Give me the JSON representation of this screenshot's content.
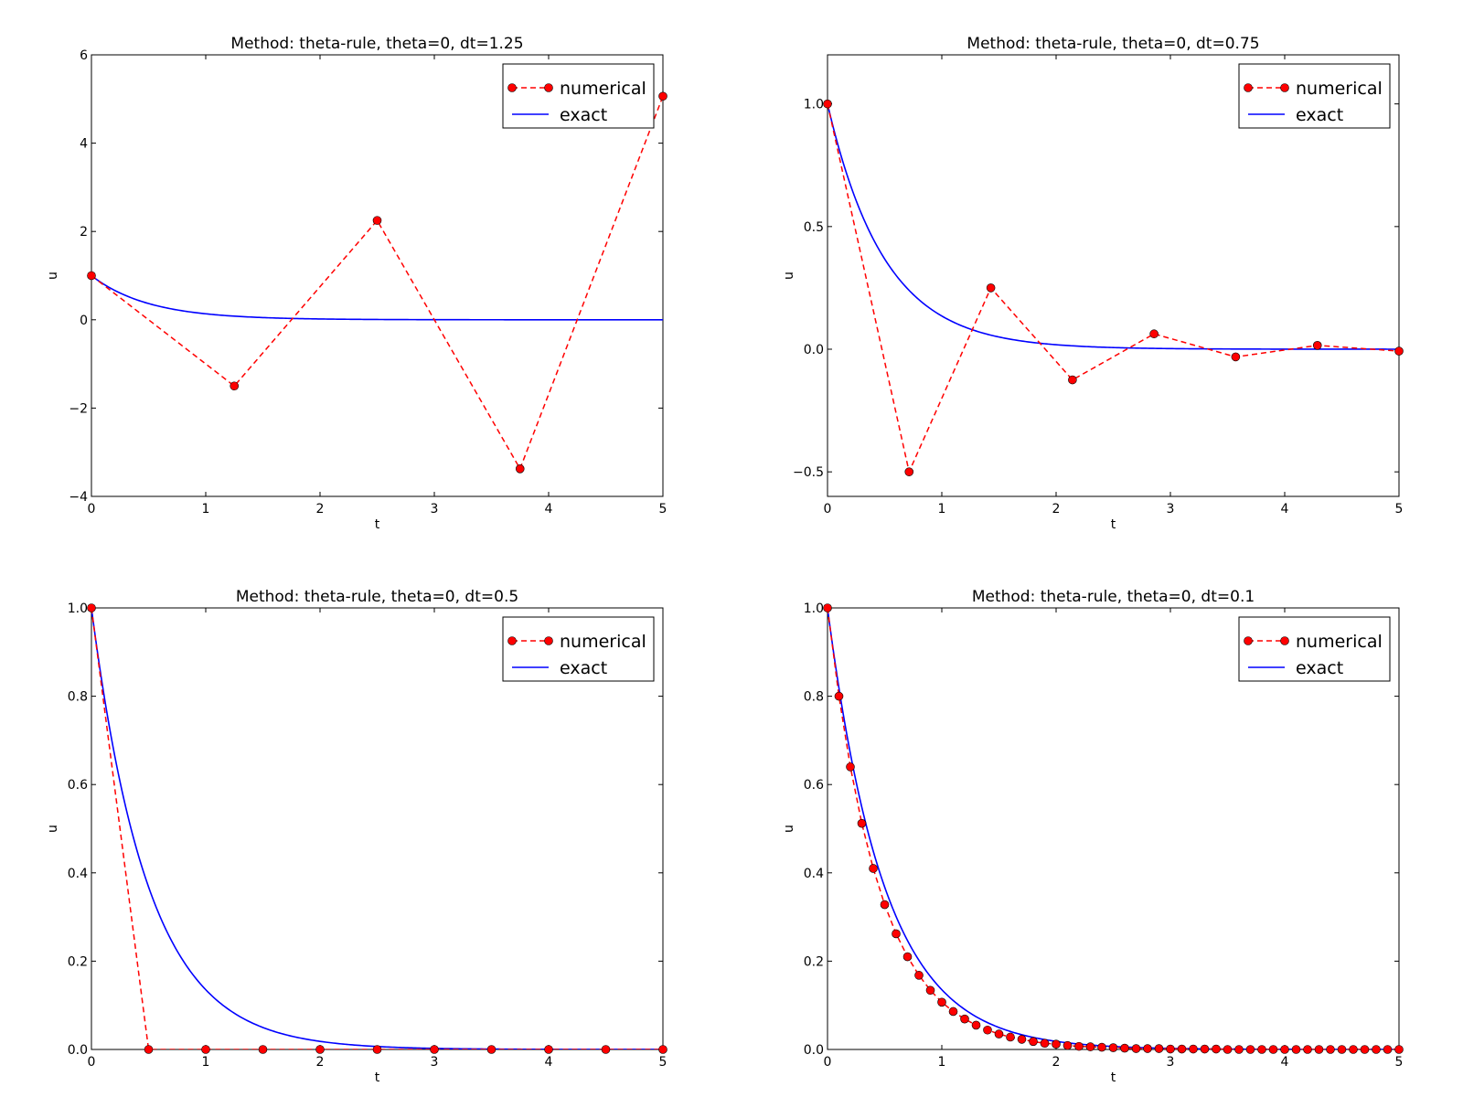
{
  "chart_data": [
    {
      "type": "line",
      "title": "Method: theta-rule, theta=0, dt=1.25",
      "xlabel": "t",
      "ylabel": "u",
      "xlim": [
        0,
        5
      ],
      "ylim": [
        -4,
        6
      ],
      "xticks": [
        0,
        1,
        2,
        3,
        4,
        5
      ],
      "yticks": [
        -4,
        -2,
        0,
        2,
        4,
        6
      ],
      "ytick_labels": [
        "−4",
        "−2",
        "0",
        "2",
        "4",
        "6"
      ],
      "grid": false,
      "legend_position": "top-right",
      "series": [
        {
          "name": "numerical",
          "style": "dashed-with-markers",
          "color": "#ff0000",
          "marker_color": "#ff0000",
          "x": [
            0,
            1.25,
            2.5,
            3.75,
            5
          ],
          "y": [
            1,
            -1.5,
            2.25,
            -3.375,
            5.0625
          ]
        },
        {
          "name": "exact",
          "style": "solid",
          "color": "#0000ff",
          "function": "exp(-2t)",
          "decay_rate": 2
        }
      ]
    },
    {
      "type": "line",
      "title": "Method: theta-rule, theta=0, dt=0.75",
      "xlabel": "t",
      "ylabel": "u",
      "xlim": [
        0,
        5
      ],
      "ylim": [
        -0.6,
        1.2
      ],
      "xticks": [
        0,
        1,
        2,
        3,
        4,
        5
      ],
      "yticks": [
        -0.5,
        0,
        0.5,
        1.0
      ],
      "ytick_labels": [
        "−0.5",
        "0.0",
        "0.5",
        "1.0"
      ],
      "grid": false,
      "legend_position": "top-right",
      "series": [
        {
          "name": "numerical",
          "style": "dashed-with-markers",
          "color": "#ff0000",
          "marker_color": "#ff0000",
          "x": [
            0,
            0.714,
            1.429,
            2.143,
            2.857,
            3.571,
            4.286,
            5.0
          ],
          "y": [
            1,
            -0.5,
            0.25,
            -0.125,
            0.0625,
            -0.0313,
            0.0156,
            -0.0078
          ]
        },
        {
          "name": "exact",
          "style": "solid",
          "color": "#0000ff",
          "function": "exp(-2t)",
          "decay_rate": 2
        }
      ]
    },
    {
      "type": "line",
      "title": "Method: theta-rule, theta=0, dt=0.5",
      "xlabel": "t",
      "ylabel": "u",
      "xlim": [
        0,
        5
      ],
      "ylim": [
        0,
        1
      ],
      "xticks": [
        0,
        1,
        2,
        3,
        4,
        5
      ],
      "yticks": [
        0,
        0.2,
        0.4,
        0.6,
        0.8,
        1.0
      ],
      "ytick_labels": [
        "0.0",
        "0.2",
        "0.4",
        "0.6",
        "0.8",
        "1.0"
      ],
      "grid": false,
      "legend_position": "top-right",
      "series": [
        {
          "name": "numerical",
          "style": "dashed-with-markers",
          "color": "#ff0000",
          "marker_color": "#ff0000",
          "x": [
            0,
            0.5,
            1.0,
            1.5,
            2.0,
            2.5,
            3.0,
            3.5,
            4.0,
            4.5,
            5.0
          ],
          "y": [
            1,
            0,
            0,
            0,
            0,
            0,
            0,
            0,
            0,
            0,
            0
          ]
        },
        {
          "name": "exact",
          "style": "solid",
          "color": "#0000ff",
          "function": "exp(-2t)",
          "decay_rate": 2
        }
      ]
    },
    {
      "type": "line",
      "title": "Method: theta-rule, theta=0, dt=0.1",
      "xlabel": "t",
      "ylabel": "u",
      "xlim": [
        0,
        5
      ],
      "ylim": [
        0,
        1
      ],
      "xticks": [
        0,
        1,
        2,
        3,
        4,
        5
      ],
      "yticks": [
        0,
        0.2,
        0.4,
        0.6,
        0.8,
        1.0
      ],
      "ytick_labels": [
        "0.0",
        "0.2",
        "0.4",
        "0.6",
        "0.8",
        "1.0"
      ],
      "grid": false,
      "legend_position": "top-right",
      "series": [
        {
          "name": "numerical",
          "style": "dashed-with-markers",
          "color": "#ff0000",
          "marker_color": "#ff0000",
          "x": [
            0,
            0.1,
            0.2,
            0.3,
            0.4,
            0.5,
            0.6,
            0.7,
            0.8,
            0.9,
            1.0,
            1.1,
            1.2,
            1.3,
            1.4,
            1.5,
            1.6,
            1.7,
            1.8,
            1.9,
            2.0,
            2.1,
            2.2,
            2.3,
            2.4,
            2.5,
            2.6,
            2.7,
            2.8,
            2.9,
            3.0,
            3.1,
            3.2,
            3.3,
            3.4,
            3.5,
            3.6,
            3.7,
            3.8,
            3.9,
            4.0,
            4.1,
            4.2,
            4.3,
            4.4,
            4.5,
            4.6,
            4.7,
            4.8,
            4.9,
            5.0
          ],
          "y": [
            1,
            0.8,
            0.64,
            0.512,
            0.41,
            0.328,
            0.262,
            0.21,
            0.168,
            0.134,
            0.107,
            0.086,
            0.069,
            0.055,
            0.044,
            0.035,
            0.028,
            0.023,
            0.018,
            0.014,
            0.012,
            0.009,
            0.007,
            0.006,
            0.005,
            0.004,
            0.003,
            0.002,
            0.002,
            0.002,
            0.001,
            0.001,
            0.001,
            0.001,
            0.001,
            0,
            0,
            0,
            0,
            0,
            0,
            0,
            0,
            0,
            0,
            0,
            0,
            0,
            0,
            0,
            0
          ]
        },
        {
          "name": "exact",
          "style": "solid",
          "color": "#0000ff",
          "function": "exp(-2t)",
          "decay_rate": 2
        }
      ]
    }
  ]
}
